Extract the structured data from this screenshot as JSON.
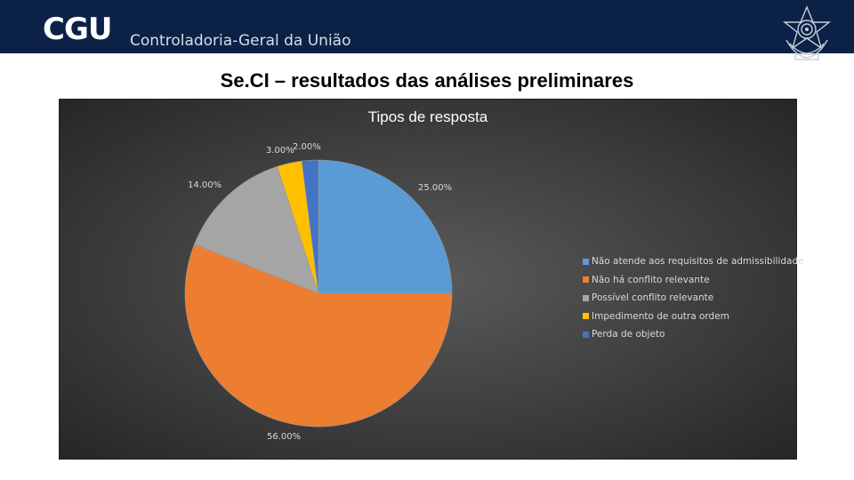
{
  "header": {
    "brand": "CGU",
    "subtitle": "Controladoria-Geral da União"
  },
  "slide": {
    "title": "Se.CI – resultados das análises preliminares"
  },
  "chart_data": {
    "type": "pie",
    "title": "Tipos de resposta",
    "categories": [
      "Não atende aos requisitos de admissibilidade",
      "Não há conflito relevante",
      "Possível conflito relevante",
      "Impedimento de outra ordem",
      "Perda de objeto"
    ],
    "values": [
      25,
      56,
      14,
      3,
      2
    ],
    "labels": [
      "25.00%",
      "56.00%",
      "14.00%",
      "3.00%",
      "2.00%"
    ],
    "colors": [
      "#5b9bd5",
      "#ed7d31",
      "#a5a5a5",
      "#ffc000",
      "#4472c4"
    ],
    "legend_position": "right"
  }
}
